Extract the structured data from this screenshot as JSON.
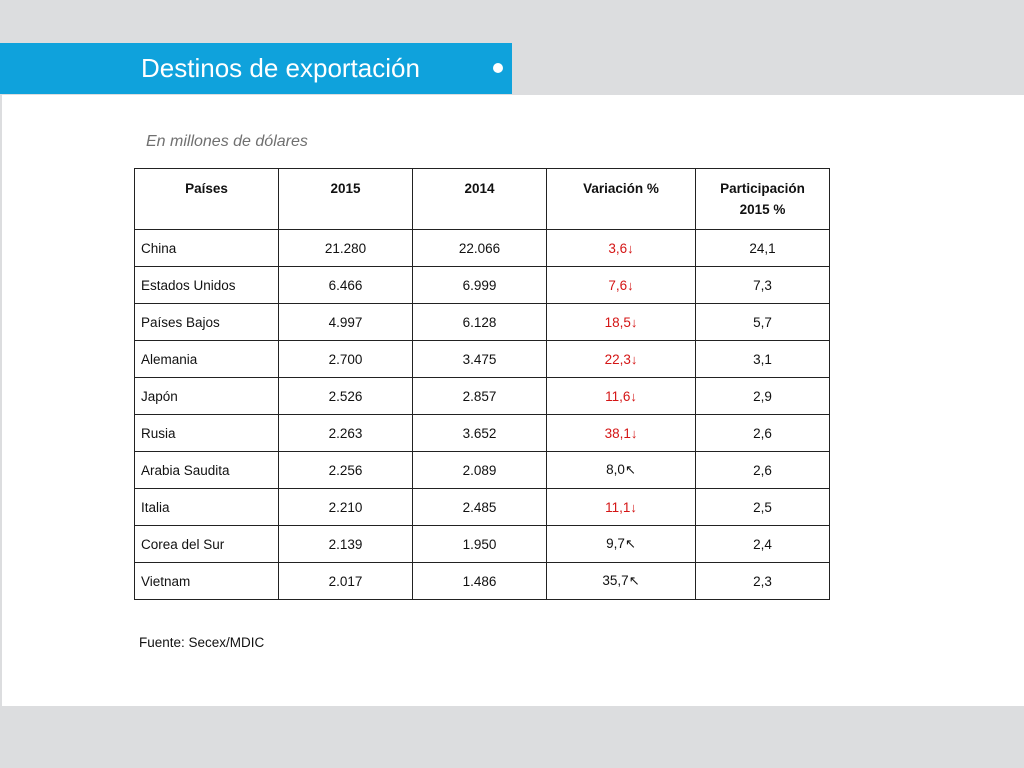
{
  "slide": {
    "title": "Destinos de exportación",
    "subtitle": "En millones de dólares",
    "source": "Fuente: Secex/MDIC"
  },
  "table": {
    "headers": [
      "Países",
      "2015",
      "2014",
      "Variación  %",
      "Participación\n2015 %"
    ],
    "rows": [
      {
        "country": "China",
        "y2015": "21.280",
        "y2014": "22.066",
        "variation": "3,6",
        "trend": "down",
        "share": "24,1"
      },
      {
        "country": "Estados Unidos",
        "y2015": "6.466",
        "y2014": "6.999",
        "variation": "7,6",
        "trend": "down",
        "share": "7,3"
      },
      {
        "country": "Países Bajos",
        "y2015": "4.997",
        "y2014": "6.128",
        "variation": "18,5",
        "trend": "down",
        "share": "5,7"
      },
      {
        "country": "Alemania",
        "y2015": "2.700",
        "y2014": "3.475",
        "variation": "22,3",
        "trend": "down",
        "share": "3,1"
      },
      {
        "country": "Japón",
        "y2015": "2.526",
        "y2014": "2.857",
        "variation": "11,6",
        "trend": "down",
        "share": "2,9"
      },
      {
        "country": "Rusia",
        "y2015": "2.263",
        "y2014": "3.652",
        "variation": "38,1",
        "trend": "down",
        "share": "2,6"
      },
      {
        "country": "Arabia Saudita",
        "y2015": "2.256",
        "y2014": "2.089",
        "variation": "8,0",
        "trend": "up",
        "share": "2,6"
      },
      {
        "country": "Italia",
        "y2015": "2.210",
        "y2014": "2.485",
        "variation": "11,1",
        "trend": "down",
        "share": "2,5"
      },
      {
        "country": "Corea del Sur",
        "y2015": "2.139",
        "y2014": "1.950",
        "variation": "9,7",
        "trend": "up",
        "share": "2,4"
      },
      {
        "country": "Vietnam",
        "y2015": "2.017",
        "y2014": "1.486",
        "variation": "35,7",
        "trend": "up",
        "share": "2,3"
      }
    ]
  },
  "colors": {
    "title_bar": "#0fa2dc",
    "decrease": "#d41515",
    "increase": "#111111",
    "background": "#dcdddf"
  },
  "icons": {
    "down": "arrow-down-icon",
    "up": "arrow-up-left-icon"
  }
}
